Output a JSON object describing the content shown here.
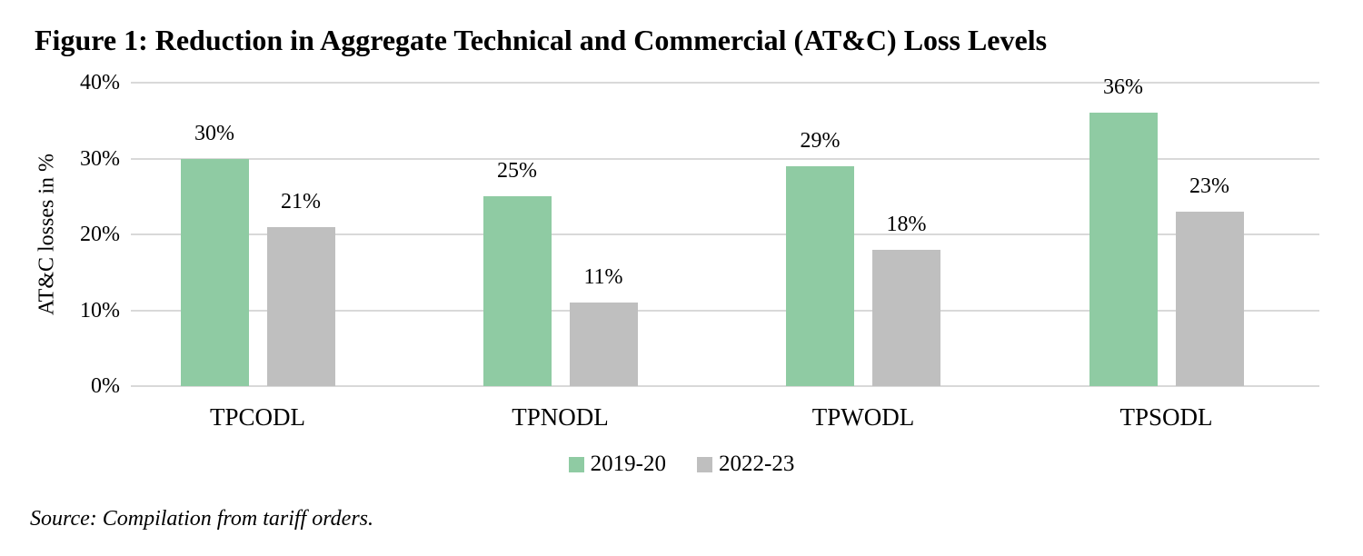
{
  "figure": {
    "title": "Figure 1: Reduction in Aggregate Technical and Commercial (AT&C) Loss Levels",
    "source": "Source: Compilation from tariff orders."
  },
  "chart_data": {
    "type": "bar",
    "title": "Figure 1: Reduction in Aggregate Technical and Commercial (AT&C) Loss Levels",
    "categories": [
      "TPCODL",
      "TPNODL",
      "TPWODL",
      "TPSODL"
    ],
    "series": [
      {
        "name": "2019-20",
        "color": "#8fcba3",
        "values": [
          30,
          25,
          29,
          36
        ],
        "labels": [
          "30%",
          "25%",
          "29%",
          "36%"
        ]
      },
      {
        "name": "2022-23",
        "color": "#bfbfbf",
        "values": [
          21,
          11,
          18,
          23
        ],
        "labels": [
          "21%",
          "11%",
          "18%",
          "23%"
        ]
      }
    ],
    "xlabel": "",
    "ylabel": "AT&C losses in %",
    "ylim": [
      0,
      40
    ],
    "yticks": [
      {
        "value": 0,
        "label": "0%"
      },
      {
        "value": 10,
        "label": "10%"
      },
      {
        "value": 20,
        "label": "20%"
      },
      {
        "value": 30,
        "label": "30%"
      },
      {
        "value": 40,
        "label": "40%"
      }
    ],
    "grid": "horizontal",
    "gridline_color": "#d9d9d9",
    "legend_position": "bottom",
    "data_labels": true
  }
}
